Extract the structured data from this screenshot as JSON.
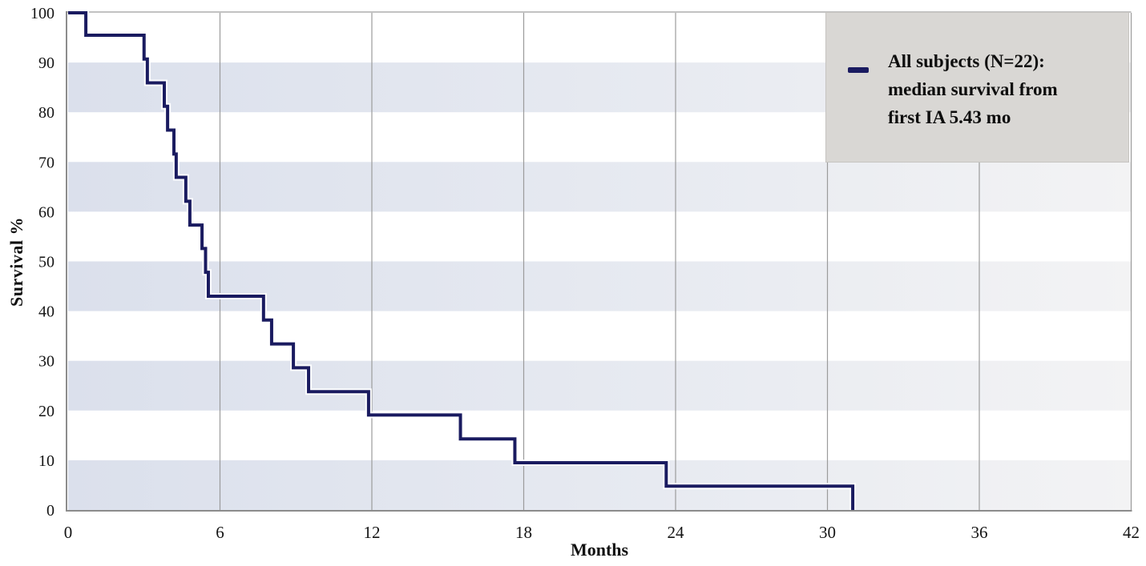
{
  "axes": {
    "x_title": "Months",
    "y_title": "Survival %",
    "x_tick_labels": [
      "0",
      "6",
      "12",
      "18",
      "24",
      "30",
      "36",
      "42"
    ],
    "y_tick_labels": [
      "0",
      "10",
      "20",
      "30",
      "40",
      "50",
      "60",
      "70",
      "80",
      "90",
      "100"
    ]
  },
  "legend": {
    "lines": [
      "All subjects (N=22):",
      "median survival from",
      "first IA 5.43 mo"
    ]
  },
  "colors": {
    "line": "#1a1b60",
    "halo": "#ffffff",
    "band_left": "#dbe0ec",
    "band_mid": "#e7eaf1",
    "band_right": "#f3f3f4",
    "legend_bg": "#d9d7d4",
    "grid": "#9b9b9b",
    "axis": "#8c8c8c",
    "frame": "#aeaeae",
    "text": "#141414"
  },
  "chart_data": {
    "type": "line",
    "subtype": "kaplan-meier-step",
    "title": "",
    "xlabel": "Months",
    "ylabel": "Survival %",
    "xlim": [
      0,
      42
    ],
    "ylim": [
      0,
      100
    ],
    "x_ticks": [
      0,
      6,
      12,
      18,
      24,
      30,
      36,
      42
    ],
    "y_ticks": [
      0,
      10,
      20,
      30,
      40,
      50,
      60,
      70,
      80,
      90,
      100
    ],
    "grid": "vertical-gridlines-only",
    "shaded_y_bands": [
      [
        0,
        10
      ],
      [
        20,
        30
      ],
      [
        40,
        50
      ],
      [
        60,
        70
      ],
      [
        80,
        90
      ]
    ],
    "legend_position": "top-right",
    "series": [
      {
        "name": "All subjects (N=22): median survival from first IA 5.43 mo",
        "n_subjects": 22,
        "median_survival_months": 5.43,
        "color": "#1a1b60",
        "points": [
          [
            0,
            100
          ],
          [
            0.7,
            95.5
          ],
          [
            3.0,
            90.7
          ],
          [
            3.13,
            85.9
          ],
          [
            3.8,
            81.2
          ],
          [
            3.93,
            76.4
          ],
          [
            4.18,
            71.6
          ],
          [
            4.27,
            66.9
          ],
          [
            4.65,
            62.1
          ],
          [
            4.81,
            57.3
          ],
          [
            5.29,
            52.6
          ],
          [
            5.43,
            47.8
          ],
          [
            5.54,
            43.0
          ],
          [
            7.72,
            38.2
          ],
          [
            8.04,
            33.4
          ],
          [
            8.9,
            28.6
          ],
          [
            9.5,
            23.8
          ],
          [
            11.87,
            19.1
          ],
          [
            15.5,
            14.3
          ],
          [
            17.65,
            9.5
          ],
          [
            23.63,
            4.8
          ],
          [
            31.0,
            0
          ]
        ]
      }
    ]
  }
}
